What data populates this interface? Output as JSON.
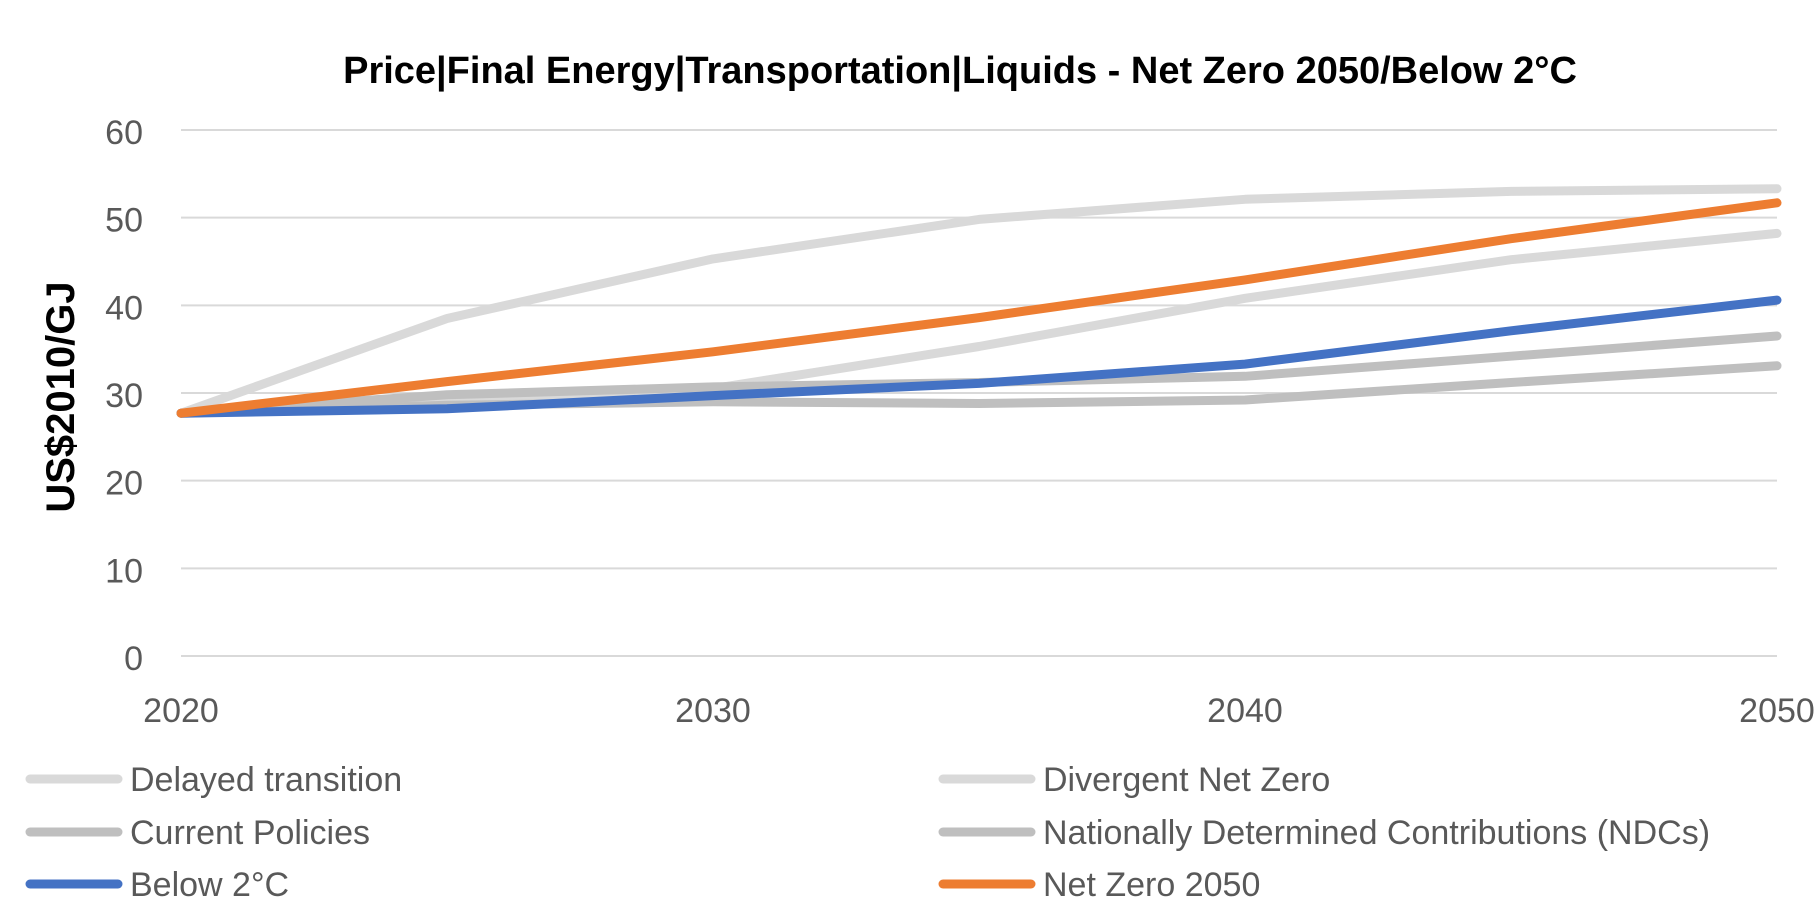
{
  "chart_data": {
    "type": "line",
    "title": "Price|Final Energy|Transportation|Liquids - Net Zero 2050/Below 2°C",
    "xlabel": "",
    "ylabel": "US$2010/GJ",
    "x": [
      2020,
      2025,
      2030,
      2035,
      2040,
      2045,
      2050
    ],
    "x_ticks": [
      "2020",
      "2030",
      "2040",
      "2050"
    ],
    "xlim": [
      2020,
      2050
    ],
    "ylim": [
      0,
      60
    ],
    "y_ticks": [
      "0",
      "10",
      "20",
      "30",
      "40",
      "50",
      "60"
    ],
    "grid": "horizontal",
    "legend_position": "bottom",
    "series": [
      {
        "name": "Delayed transition",
        "color": "#d9d9d9",
        "values": [
          27.7,
          38.5,
          45.3,
          49.8,
          52.1,
          53.0,
          53.3
        ]
      },
      {
        "name": "Divergent Net Zero",
        "color": "#d9d9d9",
        "values": [
          27.7,
          29.2,
          30.5,
          35.3,
          40.8,
          45.2,
          48.2
        ]
      },
      {
        "name": "Current Policies",
        "color": "#bfbfbf",
        "values": [
          27.7,
          28.6,
          29.0,
          28.8,
          29.2,
          31.2,
          33.1
        ]
      },
      {
        "name": "Nationally Determined Contributions (NDCs)",
        "color": "#bfbfbf",
        "values": [
          27.7,
          29.8,
          30.7,
          31.2,
          31.9,
          34.2,
          36.5
        ]
      },
      {
        "name": "Below 2°C",
        "color": "#4472c4",
        "values": [
          27.7,
          28.2,
          29.7,
          31.1,
          33.3,
          37.1,
          40.6
        ]
      },
      {
        "name": "Net Zero 2050",
        "color": "#ed7d31",
        "values": [
          27.7,
          31.3,
          34.7,
          38.6,
          42.9,
          47.6,
          51.7
        ]
      }
    ]
  }
}
